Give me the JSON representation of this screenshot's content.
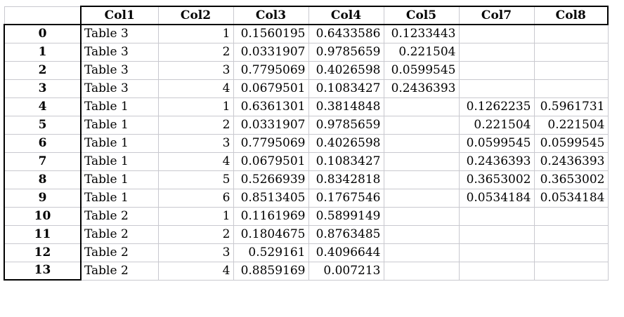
{
  "table": {
    "columns": [
      "Col1",
      "Col2",
      "Col3",
      "Col4",
      "Col5",
      "Col7",
      "Col8"
    ],
    "rows": [
      {
        "index": "0",
        "cells": [
          "Table 3",
          "1",
          "0.1560195",
          "0.6433586",
          "0.1233443",
          "",
          ""
        ]
      },
      {
        "index": "1",
        "cells": [
          "Table 3",
          "2",
          "0.0331907",
          "0.9785659",
          "0.221504",
          "",
          ""
        ]
      },
      {
        "index": "2",
        "cells": [
          "Table 3",
          "3",
          "0.7795069",
          "0.4026598",
          "0.0599545",
          "",
          ""
        ]
      },
      {
        "index": "3",
        "cells": [
          "Table 3",
          "4",
          "0.0679501",
          "0.1083427",
          "0.2436393",
          "",
          ""
        ]
      },
      {
        "index": "4",
        "cells": [
          "Table 1",
          "1",
          "0.6361301",
          "0.3814848",
          "",
          "0.1262235",
          "0.5961731"
        ]
      },
      {
        "index": "5",
        "cells": [
          "Table 1",
          "2",
          "0.0331907",
          "0.9785659",
          "",
          "0.221504",
          "0.221504"
        ]
      },
      {
        "index": "6",
        "cells": [
          "Table 1",
          "3",
          "0.7795069",
          "0.4026598",
          "",
          "0.0599545",
          "0.0599545"
        ]
      },
      {
        "index": "7",
        "cells": [
          "Table 1",
          "4",
          "0.0679501",
          "0.1083427",
          "",
          "0.2436393",
          "0.2436393"
        ]
      },
      {
        "index": "8",
        "cells": [
          "Table 1",
          "5",
          "0.5266939",
          "0.8342818",
          "",
          "0.3653002",
          "0.3653002"
        ]
      },
      {
        "index": "9",
        "cells": [
          "Table 1",
          "6",
          "0.8513405",
          "0.1767546",
          "",
          "0.0534184",
          "0.0534184"
        ]
      },
      {
        "index": "10",
        "cells": [
          "Table 2",
          "1",
          "0.1161969",
          "0.5899149",
          "",
          "",
          ""
        ]
      },
      {
        "index": "11",
        "cells": [
          "Table 2",
          "2",
          "0.1804675",
          "0.8763485",
          "",
          "",
          ""
        ]
      },
      {
        "index": "12",
        "cells": [
          "Table 2",
          "3",
          "0.529161",
          "0.4096644",
          "",
          "",
          ""
        ]
      },
      {
        "index": "13",
        "cells": [
          "Table 2",
          "4",
          "0.8859169",
          "0.007213",
          "",
          "",
          ""
        ]
      }
    ]
  }
}
